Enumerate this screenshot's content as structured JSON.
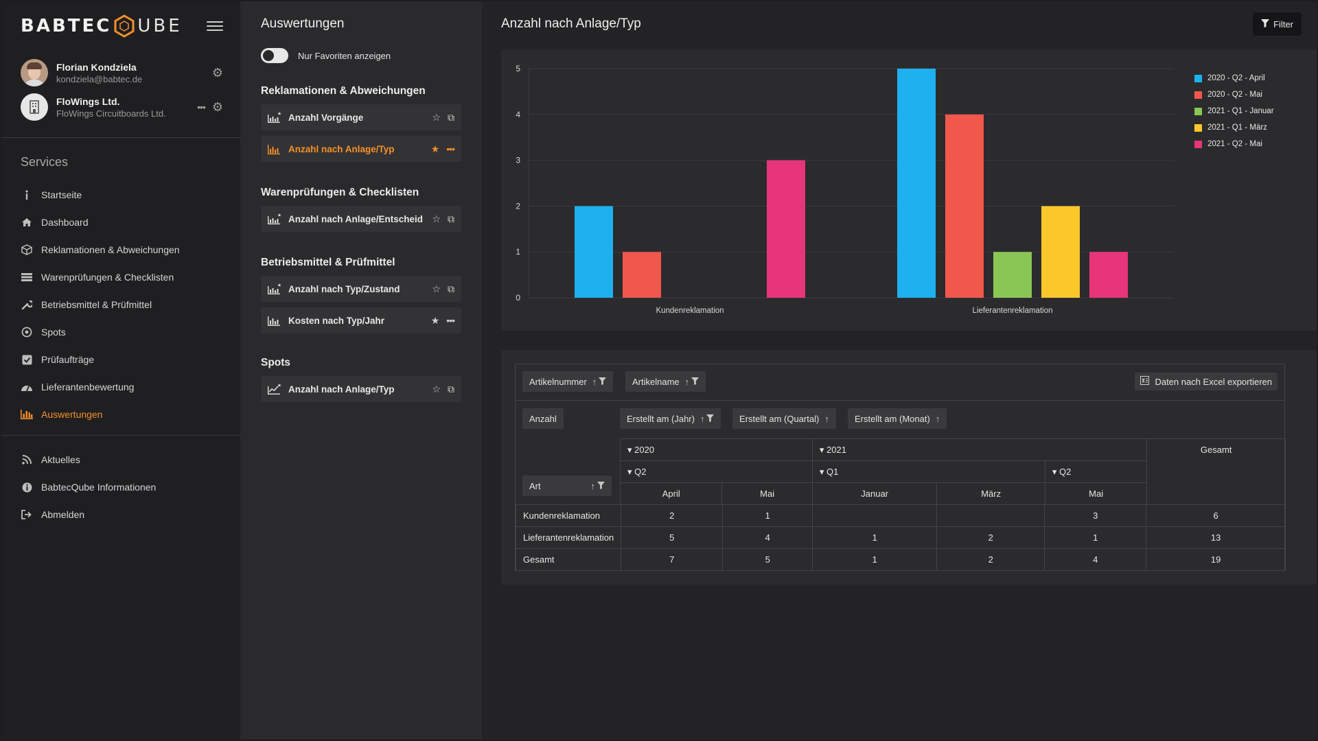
{
  "app": {
    "logo_left": "BABTEC",
    "logo_right": "UBE"
  },
  "user": {
    "name": "Florian Kondziela",
    "email": "kondziela@babtec.de"
  },
  "org": {
    "name": "FloWings Ltd.",
    "sub": "FloWings Circuitboards Ltd."
  },
  "sidebar": {
    "services_title": "Services",
    "items": [
      {
        "label": "Startseite",
        "icon": "info-icon"
      },
      {
        "label": "Dashboard",
        "icon": "home-icon"
      },
      {
        "label": "Reklamationen & Abweichungen",
        "icon": "box-icon"
      },
      {
        "label": "Warenprüfungen & Checklisten",
        "icon": "list-icon"
      },
      {
        "label": "Betriebsmittel & Prüfmittel",
        "icon": "wrench-icon"
      },
      {
        "label": "Spots",
        "icon": "target-icon"
      },
      {
        "label": "Prüfaufträge",
        "icon": "checkbox-icon"
      },
      {
        "label": "Lieferantenbewertung",
        "icon": "gauge-icon"
      },
      {
        "label": "Auswertungen",
        "icon": "chart-icon"
      }
    ],
    "bottom_items": [
      {
        "label": "Aktuelles",
        "icon": "rss-icon"
      },
      {
        "label": "BabtecQube Informationen",
        "icon": "info-circle-icon"
      },
      {
        "label": "Abmelden",
        "icon": "logout-icon"
      }
    ],
    "active_color": "#f5902a"
  },
  "reports": {
    "title": "Auswertungen",
    "favorites_toggle": "Nur Favoriten anzeigen",
    "groups": [
      {
        "title": "Reklamationen & Abweichungen",
        "items": [
          "Anzahl Vorgänge",
          "Anzahl nach Anlage/Typ"
        ]
      },
      {
        "title": "Warenprüfungen & Checklisten",
        "items": [
          "Anzahl nach Anlage/Entscheid"
        ]
      },
      {
        "title": "Betriebsmittel & Prüfmittel",
        "items": [
          "Anzahl nach Typ/Zustand",
          "Kosten nach Typ/Jahr"
        ]
      },
      {
        "title": "Spots",
        "items": [
          "Anzahl nach Anlage/Typ"
        ]
      }
    ]
  },
  "main": {
    "title": "Anzahl nach Anlage/Typ",
    "filter_label": "Filter"
  },
  "chart_data": {
    "type": "bar",
    "categories": [
      "Kundenreklamation",
      "Lieferantenreklamation"
    ],
    "series": [
      {
        "name": "2020 - Q2 - April",
        "color": "#1eb0ef",
        "values": [
          2,
          5
        ]
      },
      {
        "name": "2020 - Q2 - Mai",
        "color": "#f1574b",
        "values": [
          1,
          4
        ]
      },
      {
        "name": "2021 - Q1 - Januar",
        "color": "#8ac654",
        "values": [
          0,
          1
        ]
      },
      {
        "name": "2021 - Q1 - März",
        "color": "#fcc72b",
        "values": [
          0,
          2
        ]
      },
      {
        "name": "2021 - Q2 - Mai",
        "color": "#e8357a",
        "values": [
          3,
          1
        ]
      }
    ],
    "y_ticks": [
      "0",
      "1",
      "2",
      "3",
      "4",
      "5"
    ],
    "ylim": [
      0,
      5
    ],
    "legend_position": "top-right"
  },
  "pivot": {
    "filter_fields": [
      "Artikelnummer",
      "Artikelname"
    ],
    "export_label": "Daten nach Excel exportieren",
    "measure": "Anzahl",
    "column_fields": [
      "Erstellt am (Jahr)",
      "Erstellt am (Quartal)",
      "Erstellt am (Monat)"
    ],
    "row_field": "Art",
    "years": [
      "2020",
      "2021"
    ],
    "quarters": [
      "Q2",
      "Q1",
      "Q2"
    ],
    "months": [
      "April",
      "Mai",
      "Januar",
      "März",
      "Mai"
    ],
    "total_label": "Gesamt",
    "rows": [
      {
        "label": "Kundenreklamation",
        "cells": [
          "2",
          "1",
          "",
          "",
          "3",
          "6"
        ]
      },
      {
        "label": "Lieferantenreklamation",
        "cells": [
          "5",
          "4",
          "1",
          "2",
          "1",
          "13"
        ]
      },
      {
        "label": "Gesamt",
        "cells": [
          "7",
          "5",
          "1",
          "2",
          "4",
          "19"
        ]
      }
    ]
  }
}
